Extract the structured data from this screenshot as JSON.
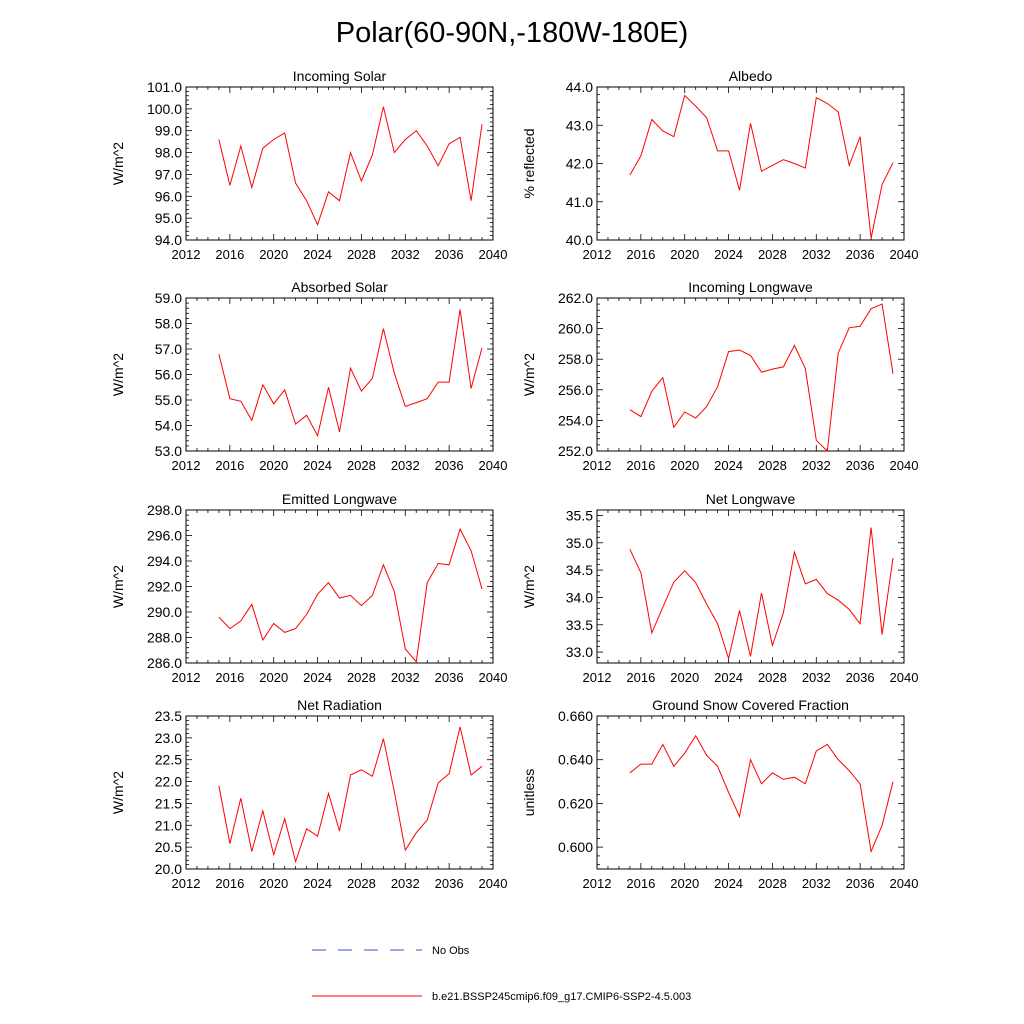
{
  "title": "Polar(60-90N,-180W-180E)",
  "colors": {
    "model_line": "#ff0000",
    "obs_line": "#3355cc",
    "axis": "#000000"
  },
  "legend": {
    "obs_label": "No Obs",
    "model_label": "b.e21.BSSP245cmip6.f09_g17.CMIP6-SSP2-4.5.003"
  },
  "chart_data": [
    {
      "type": "line",
      "title": "Incoming Solar",
      "ylabel": "W/m^2",
      "xlim": [
        2012,
        2040
      ],
      "ylim": [
        94.0,
        101.0
      ],
      "xticks": [
        "2012",
        "2016",
        "2020",
        "2024",
        "2028",
        "2032",
        "2036",
        "2040"
      ],
      "yticks": [
        "94.0",
        "95.0",
        "96.0",
        "97.0",
        "98.0",
        "99.0",
        "100.0",
        "101.0"
      ],
      "x": [
        2015,
        2016,
        2017,
        2018,
        2019,
        2020,
        2021,
        2022,
        2023,
        2024,
        2025,
        2026,
        2027,
        2028,
        2029,
        2030,
        2031,
        2032,
        2033,
        2034,
        2035,
        2036,
        2037,
        2038,
        2039
      ],
      "values": [
        98.6,
        96.5,
        98.3,
        96.4,
        98.2,
        98.6,
        98.9,
        96.6,
        95.8,
        94.7,
        96.2,
        95.8,
        98.0,
        96.7,
        97.9,
        100.1,
        98.0,
        98.6,
        99.0,
        98.3,
        97.4,
        98.4,
        98.7,
        95.8,
        99.3
      ]
    },
    {
      "type": "line",
      "title": "Albedo",
      "ylabel": "% reflected",
      "xlim": [
        2012,
        2040
      ],
      "ylim": [
        40.0,
        44.0
      ],
      "xticks": [
        "2012",
        "2016",
        "2020",
        "2024",
        "2028",
        "2032",
        "2036",
        "2040"
      ],
      "yticks": [
        "40.0",
        "41.0",
        "42.0",
        "43.0",
        "44.0"
      ],
      "x": [
        2015,
        2016,
        2017,
        2018,
        2019,
        2020,
        2021,
        2022,
        2023,
        2024,
        2025,
        2026,
        2027,
        2028,
        2029,
        2030,
        2031,
        2032,
        2033,
        2034,
        2035,
        2036,
        2037,
        2038,
        2039
      ],
      "values": [
        41.7,
        42.2,
        43.15,
        42.85,
        42.7,
        43.78,
        43.5,
        43.2,
        42.33,
        42.33,
        41.3,
        43.05,
        41.8,
        41.95,
        42.1,
        42.0,
        41.88,
        43.72,
        43.57,
        43.35,
        41.95,
        42.7,
        40.05,
        41.45,
        42.02
      ]
    },
    {
      "type": "line",
      "title": "Absorbed Solar",
      "ylabel": "W/m^2",
      "xlim": [
        2012,
        2040
      ],
      "ylim": [
        53.0,
        59.0
      ],
      "xticks": [
        "2012",
        "2016",
        "2020",
        "2024",
        "2028",
        "2032",
        "2036",
        "2040"
      ],
      "yticks": [
        "53.0",
        "54.0",
        "55.0",
        "56.0",
        "57.0",
        "58.0",
        "59.0"
      ],
      "x": [
        2015,
        2016,
        2017,
        2018,
        2019,
        2020,
        2021,
        2022,
        2023,
        2024,
        2025,
        2026,
        2027,
        2028,
        2029,
        2030,
        2031,
        2032,
        2033,
        2034,
        2035,
        2036,
        2037,
        2038,
        2039
      ],
      "values": [
        56.8,
        55.05,
        54.95,
        54.2,
        55.6,
        54.85,
        55.4,
        54.05,
        54.4,
        53.6,
        55.5,
        53.75,
        56.25,
        55.35,
        55.85,
        57.8,
        56.05,
        54.75,
        54.9,
        55.05,
        55.7,
        55.7,
        58.55,
        55.45,
        57.05
      ]
    },
    {
      "type": "line",
      "title": "Incoming Longwave",
      "ylabel": "W/m^2",
      "xlim": [
        2012,
        2040
      ],
      "ylim": [
        252.0,
        262.0
      ],
      "xticks": [
        "2012",
        "2016",
        "2020",
        "2024",
        "2028",
        "2032",
        "2036",
        "2040"
      ],
      "yticks": [
        "252.0",
        "254.0",
        "256.0",
        "258.0",
        "260.0",
        "262.0"
      ],
      "x": [
        2015,
        2016,
        2017,
        2018,
        2019,
        2020,
        2021,
        2022,
        2023,
        2024,
        2025,
        2026,
        2027,
        2028,
        2029,
        2030,
        2031,
        2032,
        2033,
        2034,
        2035,
        2036,
        2037,
        2038,
        2039
      ],
      "values": [
        254.7,
        254.25,
        255.9,
        256.8,
        253.55,
        254.55,
        254.15,
        254.9,
        256.2,
        258.5,
        258.6,
        258.25,
        257.15,
        257.35,
        257.5,
        258.9,
        257.4,
        252.7,
        252.0,
        258.4,
        260.05,
        260.15,
        261.3,
        261.6,
        257.05
      ]
    },
    {
      "type": "line",
      "title": "Emitted Longwave",
      "ylabel": "W/m^2",
      "xlim": [
        2012,
        2040
      ],
      "ylim": [
        286.0,
        298.0
      ],
      "xticks": [
        "2012",
        "2016",
        "2020",
        "2024",
        "2028",
        "2032",
        "2036",
        "2040"
      ],
      "yticks": [
        "286.0",
        "288.0",
        "290.0",
        "292.0",
        "294.0",
        "296.0",
        "298.0"
      ],
      "x": [
        2015,
        2016,
        2017,
        2018,
        2019,
        2020,
        2021,
        2022,
        2023,
        2024,
        2025,
        2026,
        2027,
        2028,
        2029,
        2030,
        2031,
        2032,
        2033,
        2034,
        2035,
        2036,
        2037,
        2038,
        2039
      ],
      "values": [
        289.6,
        288.7,
        289.3,
        290.6,
        287.8,
        289.1,
        288.4,
        288.7,
        289.8,
        291.4,
        292.3,
        291.1,
        291.3,
        290.5,
        291.3,
        293.7,
        291.6,
        287.1,
        286.1,
        292.3,
        293.8,
        293.7,
        296.5,
        294.8,
        291.8
      ]
    },
    {
      "type": "line",
      "title": "Net Longwave",
      "ylabel": "W/m^2",
      "xlim": [
        2012,
        2040
      ],
      "ylim": [
        32.8,
        35.6
      ],
      "xticks": [
        "2012",
        "2016",
        "2020",
        "2024",
        "2028",
        "2032",
        "2036",
        "2040"
      ],
      "yticks": [
        "33.0",
        "33.5",
        "34.0",
        "34.5",
        "35.0",
        "35.5"
      ],
      "x": [
        2015,
        2016,
        2017,
        2018,
        2019,
        2020,
        2021,
        2022,
        2023,
        2024,
        2025,
        2026,
        2027,
        2028,
        2029,
        2030,
        2031,
        2032,
        2033,
        2034,
        2035,
        2036,
        2037,
        2038,
        2039
      ],
      "values": [
        34.88,
        34.45,
        33.35,
        33.82,
        34.28,
        34.49,
        34.27,
        33.88,
        33.52,
        32.88,
        33.76,
        32.92,
        34.08,
        33.12,
        33.72,
        34.83,
        34.25,
        34.33,
        34.07,
        33.95,
        33.78,
        33.52,
        35.28,
        33.32,
        34.72
      ]
    },
    {
      "type": "line",
      "title": "Net Radiation",
      "ylabel": "W/m^2",
      "xlim": [
        2012,
        2040
      ],
      "ylim": [
        20.0,
        23.5
      ],
      "xticks": [
        "2012",
        "2016",
        "2020",
        "2024",
        "2028",
        "2032",
        "2036",
        "2040"
      ],
      "yticks": [
        "20.0",
        "20.5",
        "21.0",
        "21.5",
        "22.0",
        "22.5",
        "23.0",
        "23.5"
      ],
      "x": [
        2015,
        2016,
        2017,
        2018,
        2019,
        2020,
        2021,
        2022,
        2023,
        2024,
        2025,
        2026,
        2027,
        2028,
        2029,
        2030,
        2031,
        2032,
        2033,
        2034,
        2035,
        2036,
        2037,
        2038,
        2039
      ],
      "values": [
        21.9,
        20.58,
        21.62,
        20.4,
        21.33,
        20.33,
        21.15,
        20.17,
        20.92,
        20.75,
        21.73,
        20.87,
        22.15,
        22.27,
        22.12,
        22.98,
        21.77,
        20.43,
        20.83,
        21.12,
        21.97,
        22.18,
        23.25,
        22.15,
        22.35
      ]
    },
    {
      "type": "line",
      "title": "Ground Snow Covered Fraction",
      "ylabel": "unitless",
      "xlim": [
        2012,
        2040
      ],
      "ylim": [
        0.59,
        0.66
      ],
      "xticks": [
        "2012",
        "2016",
        "2020",
        "2024",
        "2028",
        "2032",
        "2036",
        "2040"
      ],
      "yticks": [
        "0.600",
        "0.620",
        "0.640",
        "0.660"
      ],
      "x": [
        2015,
        2016,
        2017,
        2018,
        2019,
        2020,
        2021,
        2022,
        2023,
        2024,
        2025,
        2026,
        2027,
        2028,
        2029,
        2030,
        2031,
        2032,
        2033,
        2034,
        2035,
        2036,
        2037,
        2038,
        2039
      ],
      "values": [
        0.634,
        0.638,
        0.638,
        0.647,
        0.637,
        0.643,
        0.651,
        0.642,
        0.637,
        0.625,
        0.614,
        0.64,
        0.629,
        0.634,
        0.631,
        0.632,
        0.629,
        0.644,
        0.647,
        0.64,
        0.635,
        0.629,
        0.598,
        0.61,
        0.63
      ]
    }
  ]
}
